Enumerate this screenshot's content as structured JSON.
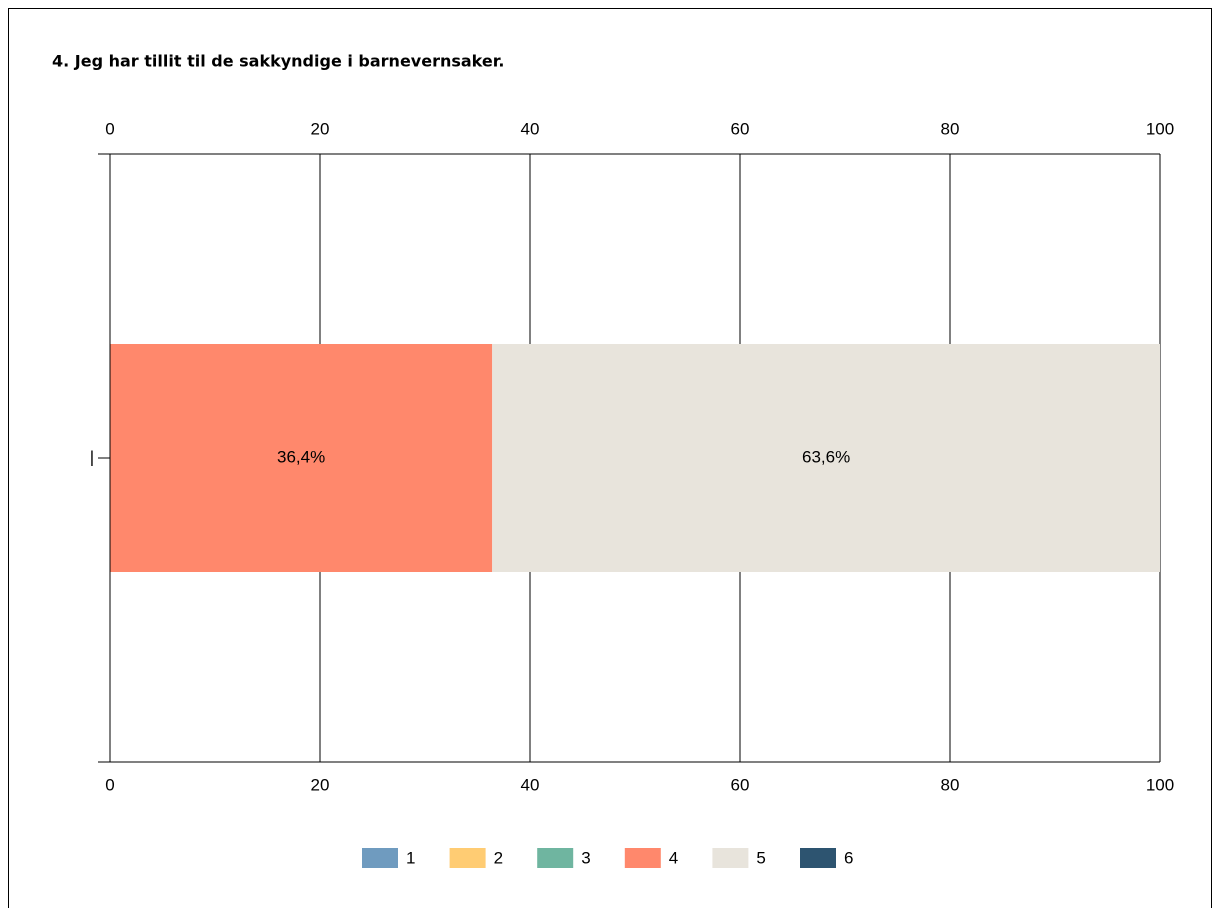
{
  "chart_data": {
    "type": "stacked-barh",
    "title": "4. Jeg har tillit til de sakkyndige i barnevernsaker.",
    "categories": [
      "|"
    ],
    "series": [
      {
        "name": "1",
        "color": "#6f9bbf",
        "values": [
          0
        ]
      },
      {
        "name": "2",
        "color": "#ffcc73",
        "values": [
          0
        ]
      },
      {
        "name": "3",
        "color": "#6fb5a0",
        "values": [
          0
        ]
      },
      {
        "name": "4",
        "color": "#ff886c",
        "values": [
          36.4
        ],
        "value_labels": [
          "36,4%"
        ]
      },
      {
        "name": "5",
        "color": "#e8e4dc",
        "values": [
          63.6
        ],
        "value_labels": [
          "63,6%"
        ]
      },
      {
        "name": "6",
        "color": "#2d5470",
        "values": [
          0
        ]
      }
    ],
    "xlim": [
      0,
      100
    ],
    "xticks": [
      0,
      20,
      40,
      60,
      80,
      100
    ],
    "grid": true,
    "legend": "bottom"
  }
}
